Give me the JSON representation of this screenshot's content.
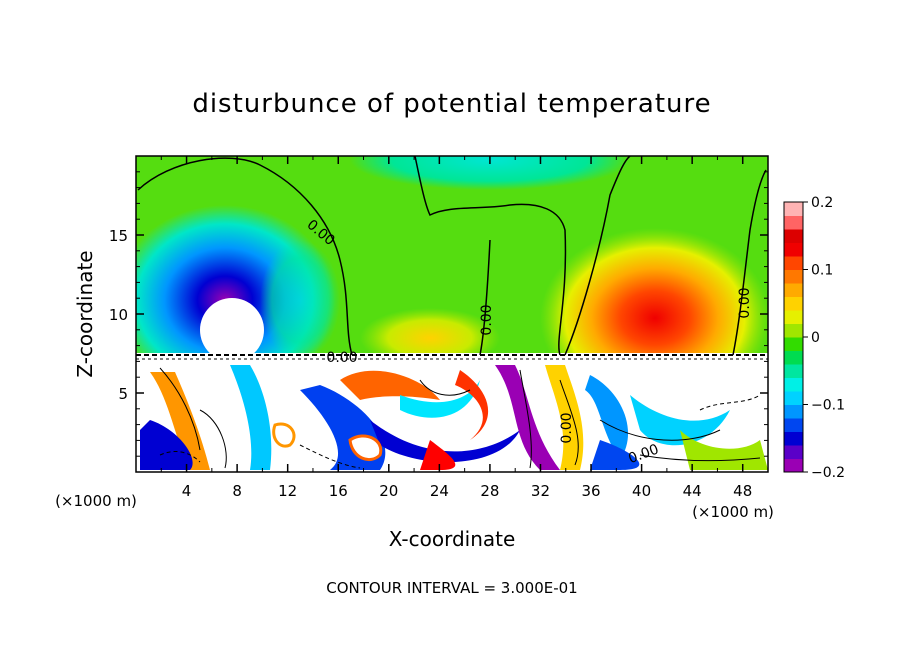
{
  "chart_data": {
    "type": "heatmap",
    "title": "disturbunce of potential temperature",
    "xlabel": "X-coordinate",
    "ylabel": "Z-coordinate",
    "x_unit_label": "(×1000 m)",
    "y_unit_label": "(×1000 m)",
    "x_range": [
      0,
      50
    ],
    "y_range": [
      0,
      20
    ],
    "x_ticks": [
      4,
      8,
      12,
      16,
      20,
      24,
      28,
      32,
      36,
      40,
      44,
      48
    ],
    "y_ticks": [
      5,
      10,
      15
    ],
    "colorbar": {
      "min": -0.2,
      "max": 0.2,
      "tick_values": [
        0.2,
        0.1,
        0,
        -0.1,
        -0.2
      ],
      "tick_labels": [
        "0.2",
        "0.1",
        "0",
        "−0.1",
        "−0.2"
      ],
      "colors": [
        "#9a00b4",
        "#5a00c8",
        "#0000d2",
        "#0046f0",
        "#0096ff",
        "#00d2ff",
        "#00f0e6",
        "#00e6a0",
        "#00dc50",
        "#32dc00",
        "#a0e600",
        "#e6f000",
        "#ffd200",
        "#ffaa00",
        "#ff7800",
        "#ff4600",
        "#f00000",
        "#dc0000",
        "#ff6464",
        "#ffb4b4"
      ]
    },
    "contour_labels": [
      "0.00",
      "0.00",
      "0.00",
      "0.00",
      "0.00",
      "0.00"
    ],
    "footer": "CONTOUR INTERVAL = 3.000E-01",
    "colors": {
      "background_field": "#55dd10",
      "frame": "#000000"
    }
  }
}
